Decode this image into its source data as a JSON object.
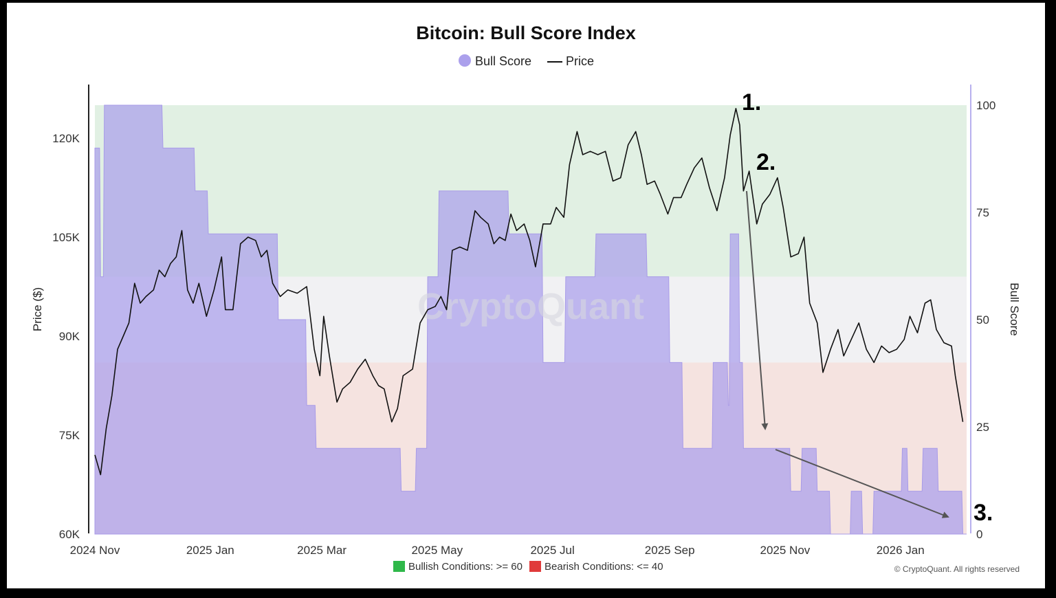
{
  "chart_data": {
    "type": "line",
    "title": "Bitcoin: Bull Score Index",
    "legend": [
      {
        "label": "Bull Score",
        "marker": "dot",
        "color": "#aba0ec"
      },
      {
        "label": "Price",
        "marker": "line",
        "color": "#111111"
      }
    ],
    "watermark": "CryptoQuant",
    "ylabel_left": "Price ($)",
    "ylabel_right": "Bull Score",
    "y_left_ticks": [
      "60K",
      "75K",
      "90K",
      "105K",
      "120K"
    ],
    "y_left_range": [
      60000,
      125000
    ],
    "y_right_ticks": [
      "0",
      "25",
      "50",
      "75",
      "100"
    ],
    "y_right_range": [
      0,
      100
    ],
    "x_ticks": [
      "2024 Nov",
      "2025 Jan",
      "2025 Mar",
      "2025 May",
      "2025 Jul",
      "2025 Sep",
      "2025 Nov",
      "2026 Jan"
    ],
    "x_range": [
      "2024-11-01",
      "2026-02-05"
    ],
    "zones": [
      {
        "label": "Bullish Conditions: >= 60",
        "from": 60,
        "to": 100,
        "color": "#2fb84a"
      },
      {
        "label": "Bearish Conditions: <= 40",
        "from": 0,
        "to": 40,
        "color": "#e03b3b"
      }
    ],
    "series": [
      {
        "name": "Price",
        "points": [
          [
            "2024-11-01",
            72000
          ],
          [
            "2024-11-04",
            69000
          ],
          [
            "2024-11-07",
            76000
          ],
          [
            "2024-11-10",
            81000
          ],
          [
            "2024-11-13",
            88000
          ],
          [
            "2024-11-16",
            90000
          ],
          [
            "2024-11-19",
            92000
          ],
          [
            "2024-11-22",
            98000
          ],
          [
            "2024-11-25",
            95000
          ],
          [
            "2024-11-28",
            96000
          ],
          [
            "2024-12-02",
            97000
          ],
          [
            "2024-12-05",
            100000
          ],
          [
            "2024-12-08",
            99000
          ],
          [
            "2024-12-11",
            101000
          ],
          [
            "2024-12-14",
            102000
          ],
          [
            "2024-12-17",
            106000
          ],
          [
            "2024-12-20",
            97000
          ],
          [
            "2024-12-23",
            95000
          ],
          [
            "2024-12-26",
            98000
          ],
          [
            "2024-12-30",
            93000
          ],
          [
            "2025-01-03",
            97000
          ],
          [
            "2025-01-07",
            102000
          ],
          [
            "2025-01-09",
            94000
          ],
          [
            "2025-01-13",
            94000
          ],
          [
            "2025-01-17",
            104000
          ],
          [
            "2025-01-21",
            105000
          ],
          [
            "2025-01-25",
            104500
          ],
          [
            "2025-01-28",
            102000
          ],
          [
            "2025-01-31",
            103000
          ],
          [
            "2025-02-03",
            98000
          ],
          [
            "2025-02-07",
            96000
          ],
          [
            "2025-02-11",
            97000
          ],
          [
            "2025-02-16",
            96500
          ],
          [
            "2025-02-21",
            97500
          ],
          [
            "2025-02-25",
            88000
          ],
          [
            "2025-02-28",
            84000
          ],
          [
            "2025-03-02",
            93000
          ],
          [
            "2025-03-05",
            87000
          ],
          [
            "2025-03-09",
            80000
          ],
          [
            "2025-03-12",
            82000
          ],
          [
            "2025-03-16",
            83000
          ],
          [
            "2025-03-20",
            85000
          ],
          [
            "2025-03-24",
            86500
          ],
          [
            "2025-03-28",
            84000
          ],
          [
            "2025-03-31",
            82500
          ],
          [
            "2025-04-03",
            82000
          ],
          [
            "2025-04-07",
            77000
          ],
          [
            "2025-04-10",
            79000
          ],
          [
            "2025-04-13",
            84000
          ],
          [
            "2025-04-18",
            85000
          ],
          [
            "2025-04-22",
            92000
          ],
          [
            "2025-04-26",
            94000
          ],
          [
            "2025-04-30",
            94500
          ],
          [
            "2025-05-03",
            96000
          ],
          [
            "2025-05-06",
            94000
          ],
          [
            "2025-05-09",
            103000
          ],
          [
            "2025-05-13",
            103500
          ],
          [
            "2025-05-17",
            103000
          ],
          [
            "2025-05-21",
            109000
          ],
          [
            "2025-05-24",
            108000
          ],
          [
            "2025-05-28",
            107000
          ],
          [
            "2025-05-31",
            104000
          ],
          [
            "2025-06-03",
            105000
          ],
          [
            "2025-06-06",
            104500
          ],
          [
            "2025-06-09",
            108500
          ],
          [
            "2025-06-12",
            106000
          ],
          [
            "2025-06-16",
            107000
          ],
          [
            "2025-06-19",
            104500
          ],
          [
            "2025-06-22",
            100500
          ],
          [
            "2025-06-26",
            107000
          ],
          [
            "2025-06-30",
            107000
          ],
          [
            "2025-07-03",
            109500
          ],
          [
            "2025-07-07",
            108000
          ],
          [
            "2025-07-10",
            116000
          ],
          [
            "2025-07-14",
            121000
          ],
          [
            "2025-07-17",
            117500
          ],
          [
            "2025-07-21",
            118000
          ],
          [
            "2025-07-25",
            117500
          ],
          [
            "2025-07-29",
            118000
          ],
          [
            "2025-08-02",
            113500
          ],
          [
            "2025-08-06",
            114000
          ],
          [
            "2025-08-10",
            119000
          ],
          [
            "2025-08-14",
            121000
          ],
          [
            "2025-08-17",
            117500
          ],
          [
            "2025-08-20",
            113000
          ],
          [
            "2025-08-24",
            113500
          ],
          [
            "2025-08-27",
            111500
          ],
          [
            "2025-08-31",
            108500
          ],
          [
            "2025-09-03",
            111000
          ],
          [
            "2025-09-07",
            111000
          ],
          [
            "2025-09-10",
            113000
          ],
          [
            "2025-09-14",
            115500
          ],
          [
            "2025-09-18",
            117000
          ],
          [
            "2025-09-22",
            112500
          ],
          [
            "2025-09-26",
            109000
          ],
          [
            "2025-09-30",
            114000
          ],
          [
            "2025-10-03",
            120500
          ],
          [
            "2025-10-06",
            124500
          ],
          [
            "2025-10-08",
            122000
          ],
          [
            "2025-10-10",
            112000
          ],
          [
            "2025-10-13",
            115000
          ],
          [
            "2025-10-17",
            107000
          ],
          [
            "2025-10-20",
            110000
          ],
          [
            "2025-10-24",
            111500
          ],
          [
            "2025-10-28",
            114000
          ],
          [
            "2025-10-31",
            109500
          ],
          [
            "2025-11-04",
            102000
          ],
          [
            "2025-11-08",
            102500
          ],
          [
            "2025-11-11",
            105000
          ],
          [
            "2025-11-14",
            95000
          ],
          [
            "2025-11-18",
            92000
          ],
          [
            "2025-11-21",
            84500
          ],
          [
            "2025-11-25",
            88000
          ],
          [
            "2025-11-29",
            91000
          ],
          [
            "2025-12-02",
            87000
          ],
          [
            "2025-12-06",
            89500
          ],
          [
            "2025-12-10",
            92000
          ],
          [
            "2025-12-14",
            88000
          ],
          [
            "2025-12-18",
            86000
          ],
          [
            "2025-12-22",
            88500
          ],
          [
            "2025-12-26",
            87500
          ],
          [
            "2025-12-30",
            88000
          ],
          [
            "2026-01-03",
            89500
          ],
          [
            "2026-01-06",
            93000
          ],
          [
            "2026-01-10",
            90500
          ],
          [
            "2026-01-14",
            95000
          ],
          [
            "2026-01-17",
            95500
          ],
          [
            "2026-01-20",
            91000
          ],
          [
            "2026-01-24",
            89000
          ],
          [
            "2026-01-28",
            88500
          ],
          [
            "2026-01-30",
            84000
          ],
          [
            "2026-02-03",
            77000
          ]
        ]
      },
      {
        "name": "Bull Score",
        "points": [
          [
            "2024-11-01",
            90
          ],
          [
            "2024-11-04",
            60
          ],
          [
            "2024-11-06",
            100
          ],
          [
            "2024-11-20",
            100
          ],
          [
            "2024-12-06",
            100
          ],
          [
            "2024-12-07",
            90
          ],
          [
            "2024-12-24",
            80
          ],
          [
            "2024-12-31",
            70
          ],
          [
            "2025-01-24",
            70
          ],
          [
            "2025-02-05",
            70
          ],
          [
            "2025-02-06",
            50
          ],
          [
            "2025-02-18",
            50
          ],
          [
            "2025-02-21",
            30
          ],
          [
            "2025-02-26",
            20
          ],
          [
            "2025-03-06",
            20
          ],
          [
            "2025-04-10",
            20
          ],
          [
            "2025-04-12",
            10
          ],
          [
            "2025-04-20",
            20
          ],
          [
            "2025-04-25",
            20
          ],
          [
            "2025-04-26",
            60
          ],
          [
            "2025-05-02",
            80
          ],
          [
            "2025-06-04",
            80
          ],
          [
            "2025-06-08",
            70
          ],
          [
            "2025-06-24",
            70
          ],
          [
            "2025-06-26",
            40
          ],
          [
            "2025-07-06",
            40
          ],
          [
            "2025-07-08",
            60
          ],
          [
            "2025-07-22",
            60
          ],
          [
            "2025-07-24",
            70
          ],
          [
            "2025-08-10",
            70
          ],
          [
            "2025-08-20",
            60
          ],
          [
            "2025-08-28",
            60
          ],
          [
            "2025-09-01",
            40
          ],
          [
            "2025-09-06",
            40
          ],
          [
            "2025-09-08",
            20
          ],
          [
            "2025-09-20",
            20
          ],
          [
            "2025-09-24",
            40
          ],
          [
            "2025-09-30",
            40
          ],
          [
            "2025-10-02",
            30
          ],
          [
            "2025-10-03",
            70
          ],
          [
            "2025-10-08",
            40
          ],
          [
            "2025-10-10",
            20
          ],
          [
            "2025-10-20",
            20
          ],
          [
            "2025-10-25",
            20
          ],
          [
            "2025-10-31",
            20
          ],
          [
            "2025-11-04",
            10
          ],
          [
            "2025-11-10",
            20
          ],
          [
            "2025-11-14",
            20
          ],
          [
            "2025-11-18",
            10
          ],
          [
            "2025-11-22",
            10
          ],
          [
            "2025-11-25",
            0
          ],
          [
            "2025-12-04",
            0
          ],
          [
            "2025-12-06",
            10
          ],
          [
            "2025-12-12",
            0
          ],
          [
            "2025-12-18",
            10
          ],
          [
            "2025-12-30",
            10
          ],
          [
            "2026-01-02",
            20
          ],
          [
            "2026-01-05",
            10
          ],
          [
            "2026-01-10",
            10
          ],
          [
            "2026-01-13",
            20
          ],
          [
            "2026-01-18",
            20
          ],
          [
            "2026-01-21",
            10
          ],
          [
            "2026-02-01",
            10
          ],
          [
            "2026-02-03",
            0
          ]
        ]
      }
    ],
    "annotations": [
      "1.",
      "2.",
      "3."
    ],
    "credit": "© CryptoQuant. All rights reserved"
  }
}
